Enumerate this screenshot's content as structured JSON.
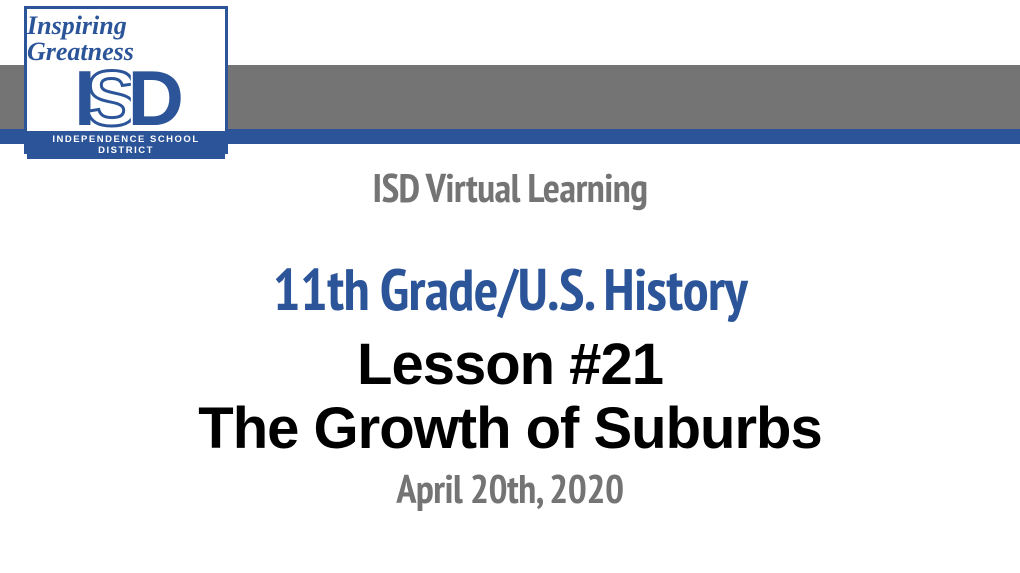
{
  "colors": {
    "brand_blue": "#2c5599",
    "grey_band": "#747474",
    "grey_text": "#747474",
    "black": "#000000",
    "white": "#ffffff"
  },
  "logo": {
    "script_text": "Inspiring Greatness",
    "main_text": "ISD",
    "footer_text": "INDEPENDENCE SCHOOL DISTRICT"
  },
  "content": {
    "program_title": "ISD Virtual Learning",
    "course_title": "11th Grade/U.S. History",
    "lesson_number": "Lesson #21",
    "lesson_title": "The Growth of Suburbs",
    "date": "April 20th, 2020"
  },
  "styling": {
    "program_title_fontsize": 40,
    "course_title_fontsize": 58,
    "lesson_fontsize": 58,
    "date_fontsize": 40,
    "grey_band_height": 64,
    "blue_band_height": 15
  }
}
